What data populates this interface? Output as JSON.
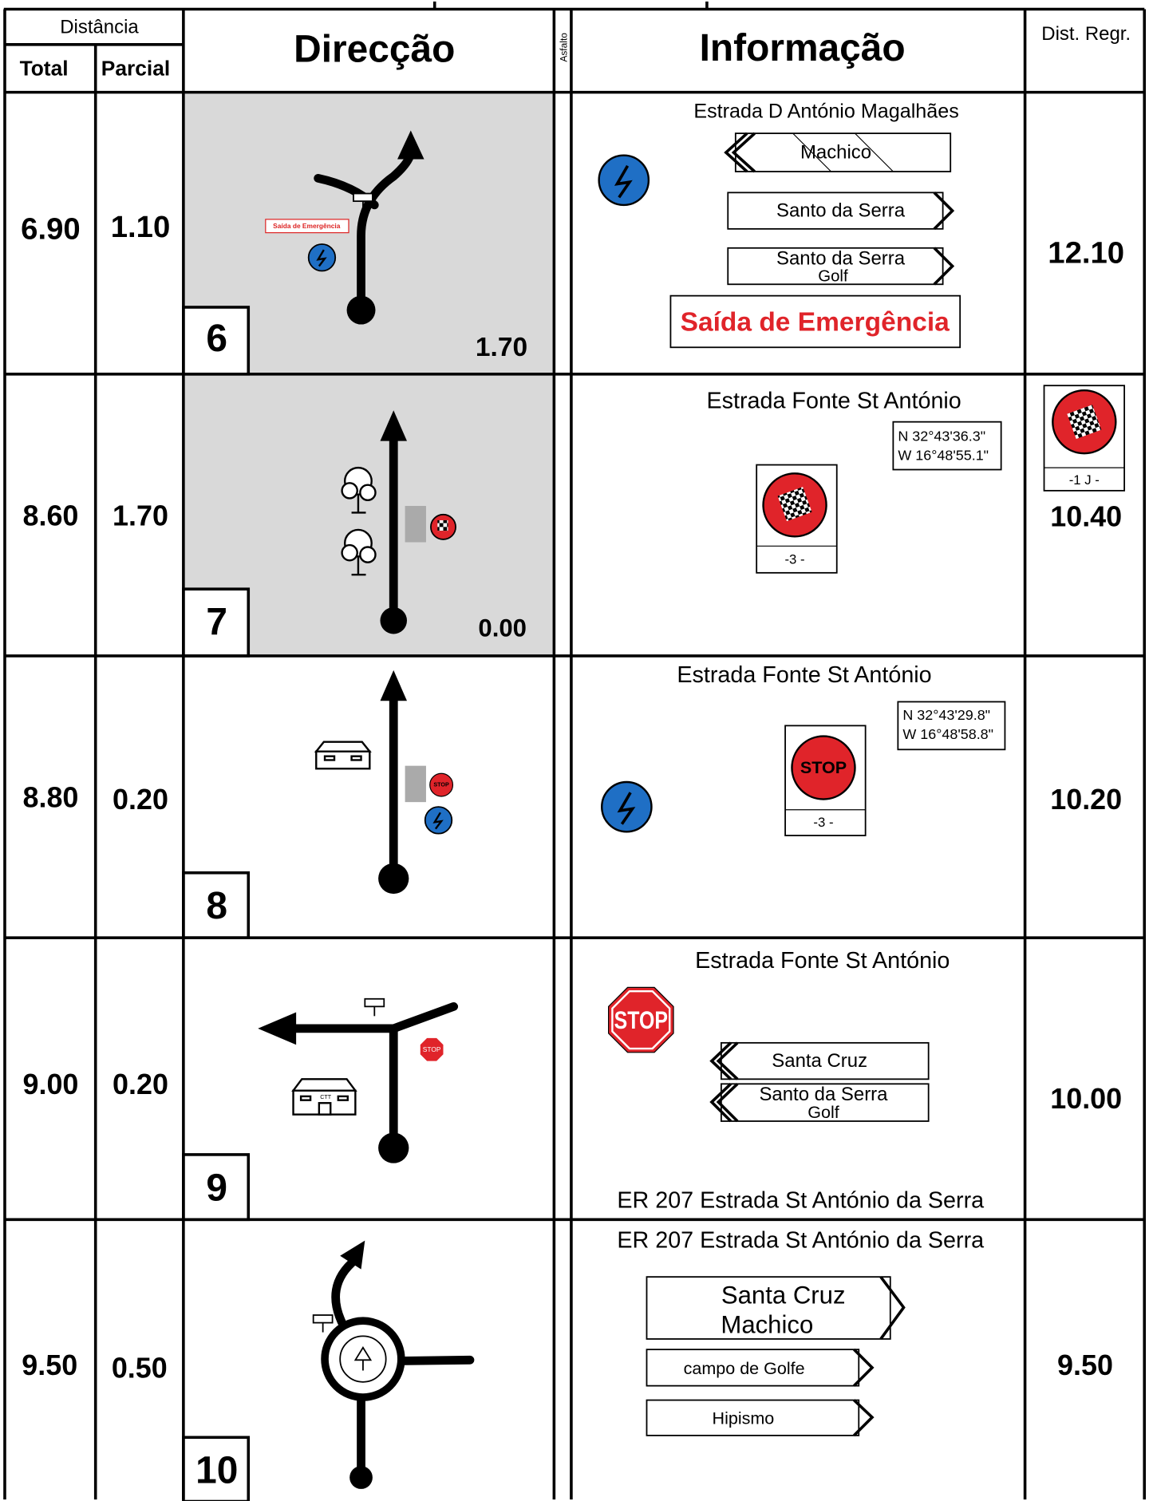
{
  "header": {
    "distance": "Distância",
    "total": "Total",
    "partial": "Parcial",
    "direction": "Direcção",
    "surface": "Asfalto",
    "info": "Informação",
    "dist_regr": "Dist. Regr."
  },
  "rows": [
    {
      "total": "6.90",
      "partial": "1.10",
      "number": "6",
      "box_distance": "1.70",
      "diagram_label": "Saída de Emergência",
      "road": "Estrada D António Magalhães",
      "signs": [
        [
          "Machico"
        ],
        [
          "Santo da Serra"
        ],
        [
          "Santo da Serra",
          "Golf"
        ]
      ],
      "emergency": "Saída de Emergência",
      "dist_regr": "12.10"
    },
    {
      "total": "8.60",
      "partial": "1.70",
      "number": "7",
      "box_distance": "0.00",
      "road": "Estrada Fonte St António",
      "coordinates": [
        "N  32°43'36.3\"",
        "W 16°48'55.1\""
      ],
      "sign_label": "-3 -",
      "regr_sign_label": "-1 J -",
      "dist_regr": "10.40"
    },
    {
      "total": "8.80",
      "partial": "0.20",
      "number": "8",
      "diagram_label": "STOP",
      "road": "Estrada Fonte St António",
      "coordinates": [
        "N  32°43'29.8\"",
        "W 16°48'58.8\""
      ],
      "sign": "STOP",
      "sign_label": "-3 -",
      "dist_regr": "10.20"
    },
    {
      "total": "9.00",
      "partial": "0.20",
      "number": "9",
      "diagram_labels": [
        "STOP",
        "CTT"
      ],
      "road": "Estrada Fonte St António",
      "sign": "STOP",
      "signs": [
        [
          "Santa Cruz"
        ],
        [
          "Santo da Serra",
          "Golf"
        ]
      ],
      "road_end": "ER 207 Estrada St António da Serra",
      "dist_regr": "10.00"
    },
    {
      "total": "9.50",
      "partial": "0.50",
      "number": "10",
      "road": "ER 207 Estrada St António da Serra",
      "signs": [
        [
          "Santa Cruz",
          "Machico"
        ],
        [
          "campo de Golfe"
        ],
        [
          "Hipismo"
        ]
      ],
      "dist_regr": "9.50"
    }
  ]
}
